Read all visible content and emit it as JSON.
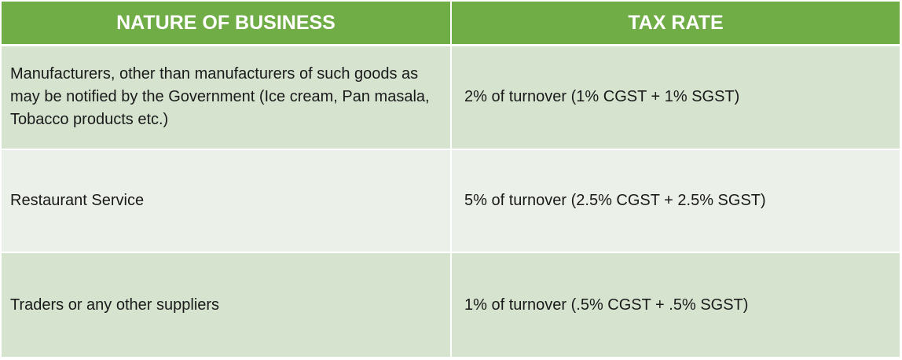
{
  "table": {
    "headers": [
      "NATURE OF BUSINESS",
      "TAX RATE"
    ],
    "rows": [
      {
        "business": "Manufacturers, other than manufacturers of such goods as may be notified by the Government (Ice cream, Pan masala, Tobacco products etc.)",
        "rate": "2% of turnover (1% CGST + 1% SGST)"
      },
      {
        "business": "Restaurant Service",
        "rate": "5% of turnover (2.5% CGST + 2.5% SGST)"
      },
      {
        "business": "Traders or any other suppliers",
        "rate": "1% of turnover (.5% CGST + .5% SGST)"
      }
    ]
  },
  "colors": {
    "header_bg": "#70ad47",
    "header_text": "#ffffff",
    "row_odd_bg": "#d5e3cf",
    "row_even_bg": "#ebf0e8"
  }
}
